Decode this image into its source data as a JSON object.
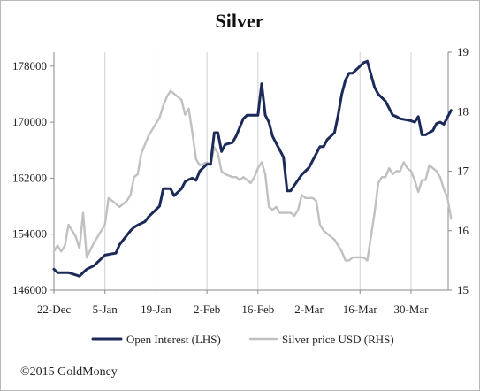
{
  "chart_data": {
    "type": "line",
    "title": "Silver",
    "x_ticks": [
      "22-Dec",
      "5-Jan",
      "19-Jan",
      "2-Feb",
      "16-Feb",
      "2-Mar",
      "16-Mar",
      "30-Mar"
    ],
    "y_left": {
      "ticks": [
        "146000",
        "154000",
        "162000",
        "170000",
        "178000"
      ],
      "range": [
        146000,
        180000
      ]
    },
    "y_right": {
      "ticks": [
        "15",
        "16",
        "17",
        "18",
        "19"
      ],
      "range": [
        15,
        19
      ]
    },
    "grid": "vertical lines at x ticks",
    "legend_position": "bottom",
    "series": [
      {
        "name": "Open Interest (LHS)",
        "axis": "left",
        "color": "#1c2a5a",
        "points": [
          [
            "2014-12-22",
            149000
          ],
          [
            "2014-12-23",
            148500
          ],
          [
            "2014-12-26",
            148500
          ],
          [
            "2014-12-29",
            148000
          ],
          [
            "2014-12-30",
            148500
          ],
          [
            "2014-12-31",
            149000
          ],
          [
            "2015-01-02",
            149500
          ],
          [
            "2015-01-05",
            151000
          ],
          [
            "2015-01-06",
            151100
          ],
          [
            "2015-01-08",
            151300
          ],
          [
            "2015-01-09",
            152500
          ],
          [
            "2015-01-12",
            154500
          ],
          [
            "2015-01-13",
            155000
          ],
          [
            "2015-01-14",
            155300
          ],
          [
            "2015-01-16",
            155800
          ],
          [
            "2015-01-17",
            156500
          ],
          [
            "2015-01-19",
            157500
          ],
          [
            "2015-01-20",
            158000
          ],
          [
            "2015-01-21",
            160500
          ],
          [
            "2015-01-23",
            160500
          ],
          [
            "2015-01-24",
            159500
          ],
          [
            "2015-01-26",
            160500
          ],
          [
            "2015-01-27",
            161500
          ],
          [
            "2015-01-28",
            161800
          ],
          [
            "2015-01-29",
            162000
          ],
          [
            "2015-01-30",
            161700
          ],
          [
            "2015-01-31",
            163000
          ],
          [
            "2015-02-02",
            164000
          ],
          [
            "2015-02-03",
            164000
          ],
          [
            "2015-02-04",
            168500
          ],
          [
            "2015-02-05",
            168500
          ],
          [
            "2015-02-06",
            165800
          ],
          [
            "2015-02-07",
            166800
          ],
          [
            "2015-02-09",
            167100
          ],
          [
            "2015-02-10",
            168000
          ],
          [
            "2015-02-12",
            170500
          ],
          [
            "2015-02-13",
            171000
          ],
          [
            "2015-02-14",
            171000
          ],
          [
            "2015-02-16",
            171000
          ],
          [
            "2015-02-17",
            175500
          ],
          [
            "2015-02-18",
            171000
          ],
          [
            "2015-02-19",
            170000
          ],
          [
            "2015-02-20",
            168000
          ],
          [
            "2015-02-21",
            167000
          ],
          [
            "2015-02-22",
            166000
          ],
          [
            "2015-02-23",
            165000
          ],
          [
            "2015-02-24",
            160200
          ],
          [
            "2015-02-25",
            160200
          ],
          [
            "2015-02-26",
            161000
          ],
          [
            "2015-02-28",
            162500
          ],
          [
            "2015-03-02",
            163500
          ],
          [
            "2015-03-03",
            164500
          ],
          [
            "2015-03-05",
            166500
          ],
          [
            "2015-03-06",
            166500
          ],
          [
            "2015-03-07",
            167500
          ],
          [
            "2015-03-09",
            168500
          ],
          [
            "2015-03-10",
            171000
          ],
          [
            "2015-03-11",
            174000
          ],
          [
            "2015-03-12",
            176000
          ],
          [
            "2015-03-13",
            177000
          ],
          [
            "2015-03-14",
            177000
          ],
          [
            "2015-03-16",
            178000
          ],
          [
            "2015-03-17",
            178500
          ],
          [
            "2015-03-18",
            178700
          ],
          [
            "2015-03-20",
            175000
          ],
          [
            "2015-03-21",
            174000
          ],
          [
            "2015-03-23",
            173000
          ],
          [
            "2015-03-24",
            172000
          ],
          [
            "2015-03-25",
            171000
          ],
          [
            "2015-03-26",
            170800
          ],
          [
            "2015-03-27",
            170500
          ],
          [
            "2015-03-30",
            170200
          ],
          [
            "2015-03-31",
            170000
          ],
          [
            "2015-04-01",
            170800
          ],
          [
            "2015-04-02",
            168200
          ],
          [
            "2015-04-03",
            168200
          ],
          [
            "2015-04-05",
            168800
          ],
          [
            "2015-04-06",
            169800
          ],
          [
            "2015-04-07",
            170000
          ],
          [
            "2015-04-08",
            169700
          ],
          [
            "2015-04-10",
            171700
          ]
        ]
      },
      {
        "name": "Silver price USD (RHS)",
        "axis": "right",
        "color": "#c0c0c0",
        "points": [
          [
            "2014-12-22",
            15.65
          ],
          [
            "2014-12-23",
            15.75
          ],
          [
            "2014-12-24",
            15.65
          ],
          [
            "2014-12-25",
            15.75
          ],
          [
            "2014-12-26",
            16.1
          ],
          [
            "2014-12-28",
            15.9
          ],
          [
            "2014-12-29",
            15.7
          ],
          [
            "2014-12-30",
            16.3
          ],
          [
            "2014-12-31",
            15.55
          ],
          [
            "2015-01-02",
            15.8
          ],
          [
            "2015-01-03",
            15.9
          ],
          [
            "2015-01-05",
            16.1
          ],
          [
            "2015-01-06",
            16.55
          ],
          [
            "2015-01-07",
            16.5
          ],
          [
            "2015-01-08",
            16.45
          ],
          [
            "2015-01-09",
            16.4
          ],
          [
            "2015-01-11",
            16.5
          ],
          [
            "2015-01-12",
            16.6
          ],
          [
            "2015-01-13",
            16.9
          ],
          [
            "2015-01-14",
            16.95
          ],
          [
            "2015-01-15",
            17.3
          ],
          [
            "2015-01-17",
            17.6
          ],
          [
            "2015-01-19",
            17.8
          ],
          [
            "2015-01-20",
            17.9
          ],
          [
            "2015-01-21",
            18.1
          ],
          [
            "2015-01-22",
            18.25
          ],
          [
            "2015-01-23",
            18.35
          ],
          [
            "2015-01-24",
            18.3
          ],
          [
            "2015-01-26",
            18.2
          ],
          [
            "2015-01-27",
            17.95
          ],
          [
            "2015-01-28",
            18.05
          ],
          [
            "2015-01-29",
            17.65
          ],
          [
            "2015-01-30",
            17.2
          ],
          [
            "2015-01-31",
            17.1
          ],
          [
            "2015-02-02",
            17.15
          ],
          [
            "2015-02-03",
            17.1
          ],
          [
            "2015-02-04",
            17.4
          ],
          [
            "2015-02-05",
            17.3
          ],
          [
            "2015-02-06",
            17.0
          ],
          [
            "2015-02-07",
            16.95
          ],
          [
            "2015-02-09",
            16.9
          ],
          [
            "2015-02-10",
            16.9
          ],
          [
            "2015-02-11",
            16.85
          ],
          [
            "2015-02-12",
            16.9
          ],
          [
            "2015-02-13",
            16.85
          ],
          [
            "2015-02-14",
            16.8
          ],
          [
            "2015-02-15",
            16.9
          ],
          [
            "2015-02-16",
            17.05
          ],
          [
            "2015-02-17",
            17.15
          ],
          [
            "2015-02-18",
            16.95
          ],
          [
            "2015-02-19",
            16.4
          ],
          [
            "2015-02-20",
            16.35
          ],
          [
            "2015-02-21",
            16.4
          ],
          [
            "2015-02-22",
            16.3
          ],
          [
            "2015-02-24",
            16.3
          ],
          [
            "2015-02-25",
            16.3
          ],
          [
            "2015-02-26",
            16.25
          ],
          [
            "2015-02-27",
            16.35
          ],
          [
            "2015-02-28",
            16.6
          ],
          [
            "2015-03-01",
            16.55
          ],
          [
            "2015-03-02",
            16.55
          ],
          [
            "2015-03-03",
            16.55
          ],
          [
            "2015-03-04",
            16.5
          ],
          [
            "2015-03-05",
            16.1
          ],
          [
            "2015-03-06",
            16.0
          ],
          [
            "2015-03-08",
            15.9
          ],
          [
            "2015-03-09",
            15.85
          ],
          [
            "2015-03-10",
            15.75
          ],
          [
            "2015-03-11",
            15.65
          ],
          [
            "2015-03-12",
            15.5
          ],
          [
            "2015-03-13",
            15.5
          ],
          [
            "2015-03-14",
            15.55
          ],
          [
            "2015-03-16",
            15.55
          ],
          [
            "2015-03-17",
            15.55
          ],
          [
            "2015-03-18",
            15.5
          ],
          [
            "2015-03-19",
            15.9
          ],
          [
            "2015-03-20",
            16.3
          ],
          [
            "2015-03-21",
            16.8
          ],
          [
            "2015-03-22",
            16.9
          ],
          [
            "2015-03-23",
            16.9
          ],
          [
            "2015-03-24",
            17.05
          ],
          [
            "2015-03-25",
            16.95
          ],
          [
            "2015-03-26",
            17.0
          ],
          [
            "2015-03-27",
            17.0
          ],
          [
            "2015-03-28",
            17.15
          ],
          [
            "2015-03-29",
            17.05
          ],
          [
            "2015-03-30",
            17.0
          ],
          [
            "2015-03-31",
            16.85
          ],
          [
            "2015-04-01",
            16.65
          ],
          [
            "2015-04-02",
            16.85
          ],
          [
            "2015-04-03",
            16.85
          ],
          [
            "2015-04-04",
            17.1
          ],
          [
            "2015-04-05",
            17.05
          ],
          [
            "2015-04-06",
            17.0
          ],
          [
            "2015-04-07",
            16.9
          ],
          [
            "2015-04-08",
            16.7
          ],
          [
            "2015-04-09",
            16.55
          ],
          [
            "2015-04-10",
            16.2
          ]
        ]
      }
    ]
  },
  "footer": {
    "copyright": "©2015 GoldMoney"
  }
}
